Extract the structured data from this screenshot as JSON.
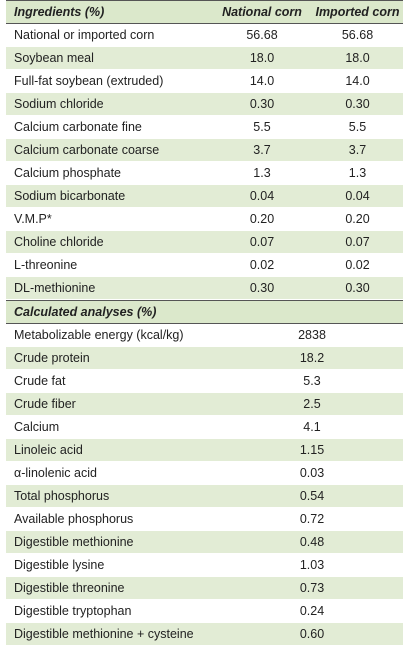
{
  "ingredients": {
    "header": [
      "Ingredients (%)",
      "National corn",
      "Imported corn"
    ],
    "rows": [
      [
        "National or imported corn",
        "56.68",
        "56.68"
      ],
      [
        "Soybean meal",
        "18.0",
        "18.0"
      ],
      [
        "Full-fat soybean (extruded)",
        "14.0",
        "14.0"
      ],
      [
        "Sodium chloride",
        "0.30",
        "0.30"
      ],
      [
        "Calcium carbonate fine",
        "5.5",
        "5.5"
      ],
      [
        "Calcium carbonate coarse",
        "3.7",
        "3.7"
      ],
      [
        "Calcium phosphate",
        "1.3",
        "1.3"
      ],
      [
        "Sodium bicarbonate",
        "0.04",
        "0.04"
      ],
      [
        "V.M.P*",
        "0.20",
        "0.20"
      ],
      [
        "Choline chloride",
        "0.07",
        "0.07"
      ],
      [
        "L-threonine",
        "0.02",
        "0.02"
      ],
      [
        "DL-methionine",
        "0.30",
        "0.30"
      ]
    ]
  },
  "analyses": {
    "header": "Calculated analyses (%)",
    "rows": [
      [
        "Metabolizable energy (kcal/kg)",
        "2838"
      ],
      [
        "Crude protein",
        "18.2"
      ],
      [
        "Crude fat",
        "5.3"
      ],
      [
        "Crude fiber",
        "2.5"
      ],
      [
        "Calcium",
        "4.1"
      ],
      [
        "Linoleic acid",
        "1.15"
      ],
      [
        "α-linolenic acid",
        "0.03"
      ],
      [
        "Total phosphorus",
        "0.54"
      ],
      [
        "Available phosphorus",
        "0.72"
      ],
      [
        "Digestible methionine",
        "0.48"
      ],
      [
        "Digestible lysine",
        "1.03"
      ],
      [
        "Digestible threonine",
        "0.73"
      ],
      [
        "Digestible tryptophan",
        "0.24"
      ],
      [
        "Digestible methionine + cysteine",
        "0.60"
      ]
    ]
  }
}
